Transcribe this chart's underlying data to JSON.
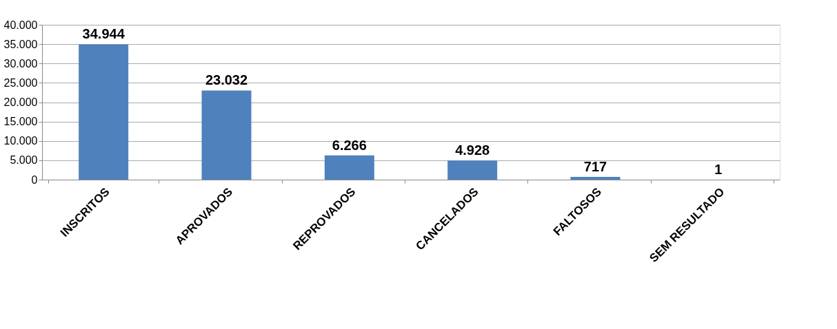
{
  "chart_data": {
    "type": "bar",
    "categories": [
      "INSCRITOS",
      "APROVADOS",
      "REPROVADOS",
      "CANCELADOS",
      "FALTOSOS",
      "SEM RESULTADO"
    ],
    "values": [
      34944,
      23032,
      6266,
      4928,
      717,
      1
    ],
    "value_labels": [
      "34.944",
      "23.032",
      "6.266",
      "4.928",
      "717",
      "1"
    ],
    "color": "#4f81bd",
    "ylim": [
      0,
      40000
    ],
    "yticks": [
      {
        "value": 0,
        "label": "0"
      },
      {
        "value": 5000,
        "label": "5.000"
      },
      {
        "value": 10000,
        "label": "10.000"
      },
      {
        "value": 15000,
        "label": "15.000"
      },
      {
        "value": 20000,
        "label": "20.000"
      },
      {
        "value": 25000,
        "label": "25.000"
      },
      {
        "value": 30000,
        "label": "30.000"
      },
      {
        "value": 35000,
        "label": "35.000"
      },
      {
        "value": 40000,
        "label": "40.000"
      }
    ],
    "grid": "y"
  }
}
